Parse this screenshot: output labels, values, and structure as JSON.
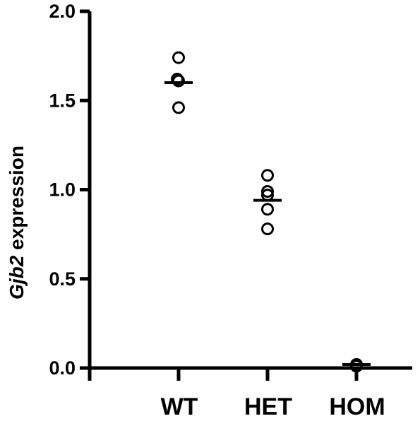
{
  "chart_data": {
    "type": "scatter",
    "ylabel_italic": "Gjb2",
    "ylabel_rest": " expression",
    "xlabel": "",
    "categories": [
      "WT",
      "HET",
      "HOM"
    ],
    "ylim": [
      0,
      2.0
    ],
    "yticks": [
      0.0,
      0.5,
      1.0,
      1.5,
      2.0
    ],
    "ytick_labels": [
      "0.0",
      "0.5",
      "1.0",
      "1.5",
      "2.0"
    ],
    "points": {
      "WT": [
        1.74,
        1.61,
        1.62,
        1.46
      ],
      "HET": [
        1.08,
        0.99,
        0.97,
        0.89,
        0.78
      ],
      "HOM": [
        0.02,
        0.01,
        0.02
      ]
    },
    "means": [
      1.6,
      0.94,
      0.02
    ],
    "grid": false,
    "legend": "none",
    "marker": "open-circle",
    "color": "#000000"
  }
}
